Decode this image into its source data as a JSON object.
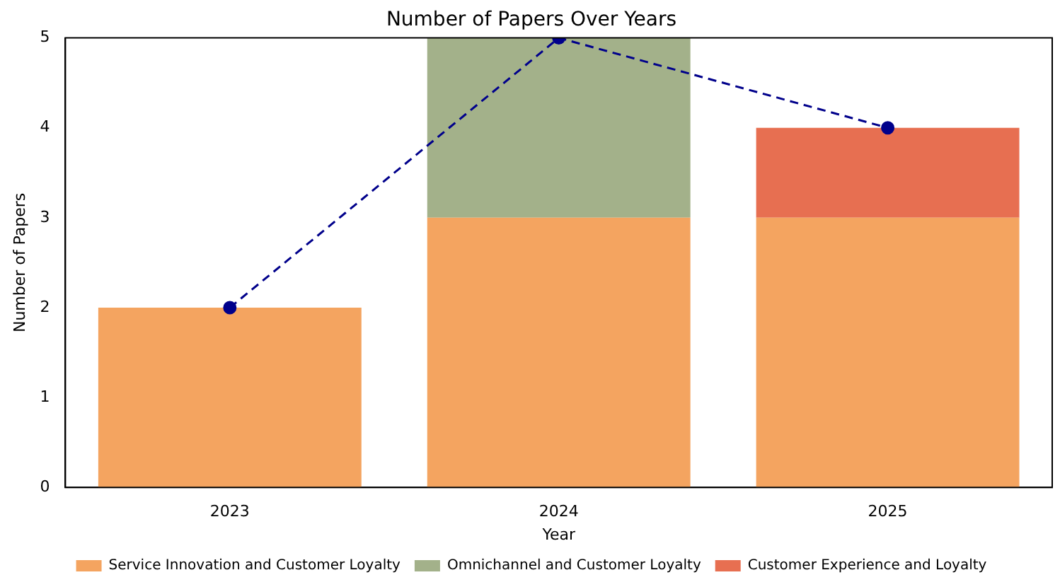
{
  "chart_data": {
    "type": "bar",
    "title": "Number of Papers Over Years",
    "xlabel": "Year",
    "ylabel": "Number of Papers",
    "categories": [
      "2023",
      "2024",
      "2025"
    ],
    "stacked": true,
    "ylim": [
      0,
      5
    ],
    "yticks": [
      0,
      1,
      2,
      3,
      4,
      5
    ],
    "grid": false,
    "legend": "bottom",
    "series": [
      {
        "name": "Service Innovation and Customer Loyalty",
        "color": "#f4a460",
        "values": [
          2,
          3,
          3
        ]
      },
      {
        "name": "Omnichannel and Customer Loyalty",
        "color": "#a3b18a",
        "values": [
          0,
          2,
          0
        ]
      },
      {
        "name": "Customer Experience and Loyalty",
        "color": "#e76f51",
        "values": [
          0,
          0,
          1
        ]
      },
      {
        "type": "line",
        "color": "#00008b",
        "values": [
          2,
          5,
          4
        ],
        "marker": "circle",
        "line_style": "dashed"
      }
    ]
  }
}
